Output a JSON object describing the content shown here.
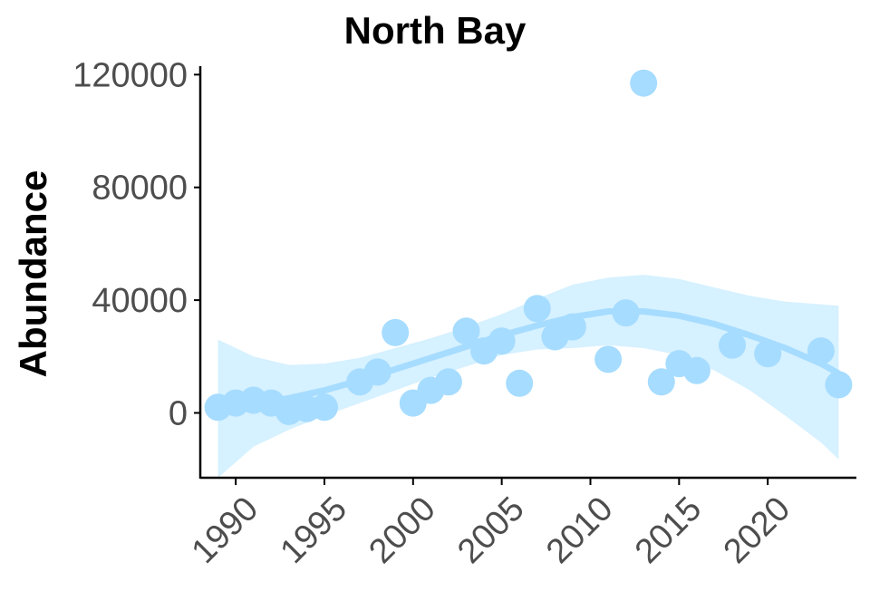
{
  "chart_data": {
    "type": "scatter",
    "title": "North Bay",
    "xlabel": "",
    "ylabel": "Abundance",
    "xlim": [
      1988,
      2025
    ],
    "ylim": [
      -23000,
      123000
    ],
    "x_ticks": [
      1990,
      1995,
      2000,
      2005,
      2010,
      2015,
      2020
    ],
    "y_ticks": [
      0,
      40000,
      80000,
      120000
    ],
    "grid": false,
    "legend": "none",
    "colors": {
      "points": "#a6dcff",
      "smooth_line": "#a6dcff",
      "ribbon": "#c8ecff"
    },
    "series": [
      {
        "points": [
          {
            "x": 1989,
            "y": 2000
          },
          {
            "x": 1990,
            "y": 3500
          },
          {
            "x": 1991,
            "y": 4500
          },
          {
            "x": 1992,
            "y": 3500
          },
          {
            "x": 1993,
            "y": 500
          },
          {
            "x": 1994,
            "y": 1500
          },
          {
            "x": 1995,
            "y": 2000
          },
          {
            "x": 1997,
            "y": 11000
          },
          {
            "x": 1998,
            "y": 14500
          },
          {
            "x": 1999,
            "y": 28500
          },
          {
            "x": 2000,
            "y": 3500
          },
          {
            "x": 2001,
            "y": 8000
          },
          {
            "x": 2002,
            "y": 11000
          },
          {
            "x": 2003,
            "y": 29000
          },
          {
            "x": 2004,
            "y": 22000
          },
          {
            "x": 2005,
            "y": 25500
          },
          {
            "x": 2006,
            "y": 10500
          },
          {
            "x": 2007,
            "y": 37000
          },
          {
            "x": 2008,
            "y": 27000
          },
          {
            "x": 2009,
            "y": 30500
          },
          {
            "x": 2011,
            "y": 19000
          },
          {
            "x": 2012,
            "y": 35500
          },
          {
            "x": 2013,
            "y": 117000
          },
          {
            "x": 2014,
            "y": 11000
          },
          {
            "x": 2015,
            "y": 17500
          },
          {
            "x": 2016,
            "y": 15000
          },
          {
            "x": 2018,
            "y": 24000
          },
          {
            "x": 2020,
            "y": 21000
          },
          {
            "x": 2023,
            "y": 22000
          },
          {
            "x": 2024,
            "y": 10000
          }
        ],
        "smooth": [
          {
            "x": 1989,
            "y": 1500
          },
          {
            "x": 1991,
            "y": 3000
          },
          {
            "x": 1993,
            "y": 5200
          },
          {
            "x": 1995,
            "y": 8000
          },
          {
            "x": 1997,
            "y": 11500
          },
          {
            "x": 1999,
            "y": 15500
          },
          {
            "x": 2001,
            "y": 19500
          },
          {
            "x": 2003,
            "y": 23500
          },
          {
            "x": 2005,
            "y": 27500
          },
          {
            "x": 2007,
            "y": 31000
          },
          {
            "x": 2009,
            "y": 34000
          },
          {
            "x": 2011,
            "y": 36000
          },
          {
            "x": 2013,
            "y": 36000
          },
          {
            "x": 2015,
            "y": 34500
          },
          {
            "x": 2017,
            "y": 31500
          },
          {
            "x": 2019,
            "y": 27500
          },
          {
            "x": 2021,
            "y": 23000
          },
          {
            "x": 2023,
            "y": 17500
          },
          {
            "x": 2024,
            "y": 14000
          }
        ],
        "ribbon_upper": [
          {
            "x": 1989,
            "y": 26000
          },
          {
            "x": 1991,
            "y": 20000
          },
          {
            "x": 1993,
            "y": 17000
          },
          {
            "x": 1995,
            "y": 17500
          },
          {
            "x": 1997,
            "y": 19500
          },
          {
            "x": 1999,
            "y": 23000
          },
          {
            "x": 2001,
            "y": 26500
          },
          {
            "x": 2003,
            "y": 30500
          },
          {
            "x": 2005,
            "y": 35000
          },
          {
            "x": 2007,
            "y": 40500
          },
          {
            "x": 2009,
            "y": 45500
          },
          {
            "x": 2011,
            "y": 48000
          },
          {
            "x": 2013,
            "y": 49000
          },
          {
            "x": 2015,
            "y": 47500
          },
          {
            "x": 2017,
            "y": 44500
          },
          {
            "x": 2019,
            "y": 41500
          },
          {
            "x": 2021,
            "y": 39500
          },
          {
            "x": 2023,
            "y": 38500
          },
          {
            "x": 2024,
            "y": 38000
          }
        ],
        "ribbon_lower": [
          {
            "x": 1989,
            "y": -23000
          },
          {
            "x": 1991,
            "y": -12000
          },
          {
            "x": 1993,
            "y": -6000
          },
          {
            "x": 1995,
            "y": -1000
          },
          {
            "x": 1997,
            "y": 3500
          },
          {
            "x": 1999,
            "y": 8000
          },
          {
            "x": 2001,
            "y": 12500
          },
          {
            "x": 2003,
            "y": 16500
          },
          {
            "x": 2005,
            "y": 20500
          },
          {
            "x": 2007,
            "y": 22500
          },
          {
            "x": 2009,
            "y": 23000
          },
          {
            "x": 2011,
            "y": 24000
          },
          {
            "x": 2013,
            "y": 23000
          },
          {
            "x": 2015,
            "y": 20500
          },
          {
            "x": 2017,
            "y": 15000
          },
          {
            "x": 2019,
            "y": 8000
          },
          {
            "x": 2021,
            "y": -1000
          },
          {
            "x": 2023,
            "y": -10500
          },
          {
            "x": 2024,
            "y": -16500
          }
        ]
      }
    ]
  }
}
